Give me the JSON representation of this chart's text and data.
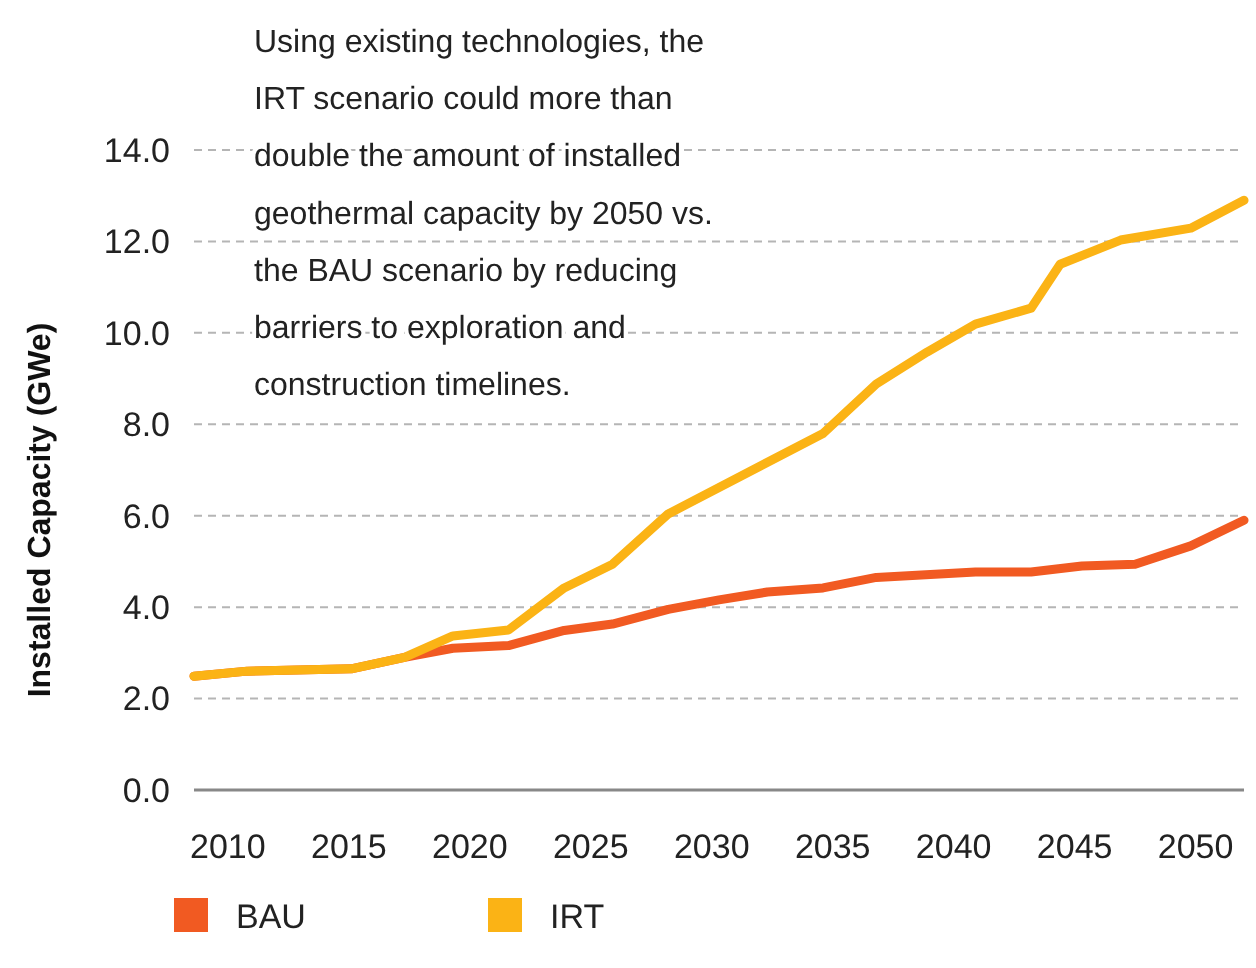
{
  "chart_data": {
    "type": "line",
    "ylabel": "Installed Capacity (GWe)",
    "annotations": [
      "Using existing technologies, the IRT scenario could more than double the amount of installed geothermal capacity by 2050 vs. the BAU scenario by reducing barriers to exploration and construction timelines."
    ],
    "xlim": [
      2008.6,
      2052
    ],
    "xticks": [
      2010,
      2015,
      2020,
      2025,
      2030,
      2035,
      2040,
      2045,
      2050
    ],
    "ylim": [
      0,
      14
    ],
    "yticks": [
      {
        "value": 0,
        "label": "0.0"
      },
      {
        "value": 2,
        "label": "2.0"
      },
      {
        "value": 4,
        "label": "4.0"
      },
      {
        "value": 6,
        "label": "6.0"
      },
      {
        "value": 8,
        "label": "8.0"
      },
      {
        "value": 10,
        "label": "10.0"
      },
      {
        "value": 12,
        "label": "12.0"
      },
      {
        "value": 14,
        "label": "14.0"
      }
    ],
    "grid": "y",
    "legend": "bottom",
    "marker": "none",
    "line_style": "solid",
    "series": [
      {
        "name": "BAU",
        "color": "#f15a22",
        "x": [
          2008.6,
          2010.8,
          2015.1,
          2017.3,
          2019.3,
          2021.6,
          2023.9,
          2025.9,
          2028.2,
          2030.3,
          2032.3,
          2034.6,
          2036.8,
          2040.9,
          2043.2,
          2045.3,
          2047.5,
          2049.8,
          2052.0
        ],
        "values": [
          2.49,
          2.6,
          2.65,
          2.9,
          3.1,
          3.16,
          3.49,
          3.63,
          3.95,
          4.16,
          4.33,
          4.42,
          4.65,
          4.77,
          4.77,
          4.9,
          4.94,
          5.34,
          5.9
        ]
      },
      {
        "name": "IRT",
        "color": "#fbb315",
        "x": [
          2008.6,
          2010.8,
          2015.1,
          2017.3,
          2019.3,
          2021.6,
          2023.9,
          2025.9,
          2028.2,
          2034.6,
          2036.8,
          2038.9,
          2040.9,
          2043.2,
          2044.4,
          2046.9,
          2049.8,
          2052.0
        ],
        "values": [
          2.49,
          2.6,
          2.65,
          2.9,
          3.37,
          3.5,
          4.42,
          4.94,
          6.04,
          7.8,
          8.88,
          9.58,
          10.19,
          10.54,
          11.5,
          12.03,
          12.29,
          12.9
        ]
      }
    ]
  }
}
